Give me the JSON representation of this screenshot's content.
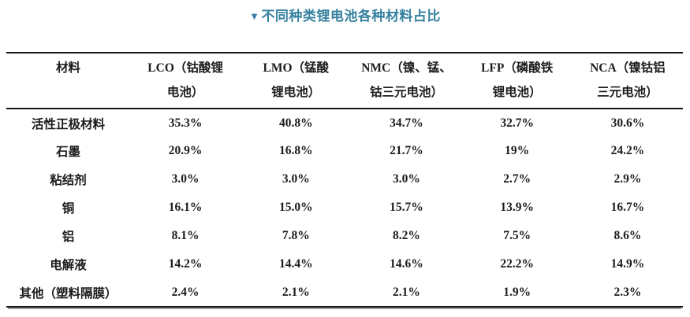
{
  "title": {
    "marker_icon": "▼",
    "text": "不同种类锂电池各种材料占比",
    "color": "#35819f"
  },
  "chart_data": {
    "type": "table",
    "title": "不同种类锂电池各种材料占比",
    "columns": [
      "材料",
      "LCO（钴酸锂电池）",
      "LMO（锰酸锂电池）",
      "NMC（镍、锰、钴三元电池）",
      "LFP（磷酸铁锂电池）",
      "NCA（镍钴铝三元电池）"
    ],
    "columns_display": [
      {
        "line1": "材料",
        "line2": ""
      },
      {
        "line1": "LCO（钴酸锂",
        "line2": "电池）"
      },
      {
        "line1": "LMO（锰酸",
        "line2": "锂电池）"
      },
      {
        "line1": "NMC（镍、锰、",
        "line2": "钴三元电池）"
      },
      {
        "line1": "LFP（磷酸铁",
        "line2": "锂电池）"
      },
      {
        "line1": "NCA（镍钴铝",
        "line2": "三元电池）"
      }
    ],
    "rows": [
      {
        "label": "活性正极材料",
        "values": [
          "35.3%",
          "40.8%",
          "34.7%",
          "32.7%",
          "30.6%"
        ]
      },
      {
        "label": "石墨",
        "values": [
          "20.9%",
          "16.8%",
          "21.7%",
          "19%",
          "24.2%"
        ]
      },
      {
        "label": "粘结剂",
        "values": [
          "3.0%",
          "3.0%",
          "3.0%",
          "2.7%",
          "2.9%"
        ]
      },
      {
        "label": "铜",
        "values": [
          "16.1%",
          "15.0%",
          "15.7%",
          "13.9%",
          "16.7%"
        ]
      },
      {
        "label": "铝",
        "values": [
          "8.1%",
          "7.8%",
          "8.2%",
          "7.5%",
          "8.6%"
        ]
      },
      {
        "label": "电解液",
        "values": [
          "14.2%",
          "14.4%",
          "14.6%",
          "22.2%",
          "14.9%"
        ]
      },
      {
        "label": "其他（塑料隔膜）",
        "values": [
          "2.4%",
          "2.1%",
          "2.1%",
          "1.9%",
          "2.3%"
        ]
      }
    ],
    "text_color": "#1c1c1c",
    "rule_color": "#161616"
  }
}
